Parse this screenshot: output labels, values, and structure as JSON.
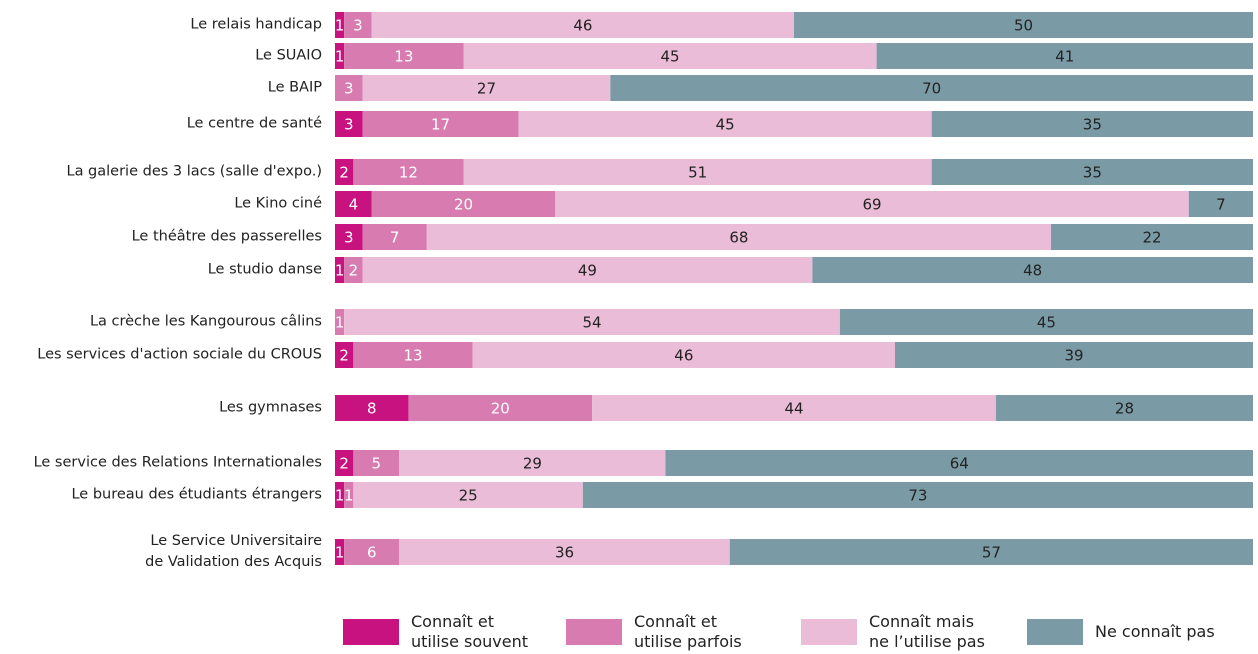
{
  "chart_data": {
    "type": "stacked-barh",
    "categories": [
      "Le relais handicap",
      "Le SUAIO",
      "Le BAIP",
      "Le centre de santé",
      "La galerie des 3 lacs (salle d'expo.)",
      "Le Kino ciné",
      "Le théâtre des passerelles",
      "Le studio danse",
      "La crèche les Kangourous câlins",
      "Les services d'action sociale du CROUS",
      "Les gymnases",
      "Le service des Relations Internationales",
      "Le bureau des étudiants étrangers",
      "Le Service Universitaire\nde Validation des Acquis"
    ],
    "series": [
      {
        "name": "Connaît et\nutilise souvent",
        "color": "#c8127f",
        "values": [
          1,
          1,
          null,
          3,
          2,
          4,
          3,
          1,
          null,
          2,
          8,
          2,
          1,
          1
        ]
      },
      {
        "name": "Connaît et\nutilise parfois",
        "color": "#d77bb0",
        "values": [
          3,
          13,
          3,
          17,
          12,
          20,
          7,
          2,
          1,
          13,
          20,
          5,
          1,
          6
        ]
      },
      {
        "name": "Connaît mais\nne l’utilise pas",
        "color": "#ebbcd8",
        "values": [
          46,
          45,
          27,
          45,
          51,
          69,
          68,
          49,
          54,
          46,
          44,
          29,
          25,
          36
        ]
      },
      {
        "name": "Ne connaît pas",
        "color": "#7a9ba6",
        "values": [
          50,
          41,
          70,
          35,
          35,
          7,
          22,
          48,
          45,
          39,
          28,
          64,
          73,
          57
        ]
      }
    ]
  }
}
